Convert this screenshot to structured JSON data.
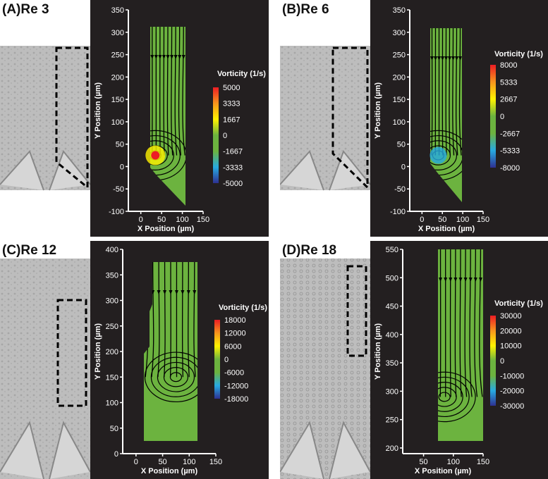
{
  "panels": [
    {
      "id": "A",
      "label": "(A)Re 3",
      "chart_data": {
        "type": "streamline-vorticity",
        "xlabel": "X Position (µm)",
        "ylabel": "Y Position (µm)",
        "x_ticks": [
          0,
          50,
          100,
          150
        ],
        "y_ticks": [
          -100,
          -50,
          0,
          50,
          100,
          150,
          200,
          250,
          300,
          350
        ],
        "xlim": [
          -30,
          150
        ],
        "ylim": [
          -100,
          350
        ],
        "colorbar_title": "Vorticity (1/s)",
        "colorbar_ticks": [
          "5000",
          "3333",
          "1667",
          "0",
          "-1667",
          "-3333",
          "-5000"
        ],
        "vortex_center": [
          35,
          25
        ]
      }
    },
    {
      "id": "B",
      "label": "(B)Re 6",
      "chart_data": {
        "type": "streamline-vorticity",
        "xlabel": "X Position (µm)",
        "ylabel": "Y Position (µm)",
        "x_ticks": [
          0,
          50,
          100,
          150
        ],
        "y_ticks": [
          -100,
          -50,
          0,
          50,
          100,
          150,
          200,
          250,
          300,
          350
        ],
        "xlim": [
          -30,
          150
        ],
        "ylim": [
          -100,
          350
        ],
        "colorbar_title": "Vorticity (1/s)",
        "colorbar_ticks": [
          "8000",
          "5333",
          "2667",
          "0",
          "-2667",
          "-5333",
          "-8000"
        ],
        "vortex_center": [
          40,
          25
        ]
      }
    },
    {
      "id": "C",
      "label": "(C)Re 12",
      "chart_data": {
        "type": "streamline-vorticity",
        "xlabel": "X Position (µm)",
        "ylabel": "Y Position (µm)",
        "x_ticks": [
          0,
          50,
          100,
          150
        ],
        "y_ticks": [
          0,
          50,
          100,
          150,
          200,
          250,
          300,
          350,
          400
        ],
        "xlim": [
          -25,
          150
        ],
        "ylim": [
          0,
          400
        ],
        "colorbar_title": "Vorticity (1/s)",
        "colorbar_ticks": [
          "18000",
          "12000",
          "6000",
          "0",
          "-6000",
          "-12000",
          "-18000"
        ],
        "vortex_center": [
          75,
          150
        ]
      }
    },
    {
      "id": "D",
      "label": "(D)Re 18",
      "chart_data": {
        "type": "streamline-vorticity",
        "xlabel": "X Position (µm)",
        "ylabel": "Y Position (µm)",
        "x_ticks": [
          50,
          100,
          150
        ],
        "y_ticks": [
          200,
          250,
          300,
          350,
          400,
          450,
          500,
          550
        ],
        "xlim": [
          15,
          150
        ],
        "ylim": [
          190,
          550
        ],
        "colorbar_title": "Vorticity (1/s)",
        "colorbar_ticks": [
          "30000",
          "20000",
          "10000",
          "0",
          "-10000",
          "-20000",
          "-30000"
        ],
        "vortex_center": [
          85,
          290
        ]
      }
    }
  ],
  "colors": {
    "background": "#231f20",
    "field": "#6cb33f",
    "streamline": "#000000",
    "dashed_box": "#000000",
    "axis": "#ffffff"
  }
}
